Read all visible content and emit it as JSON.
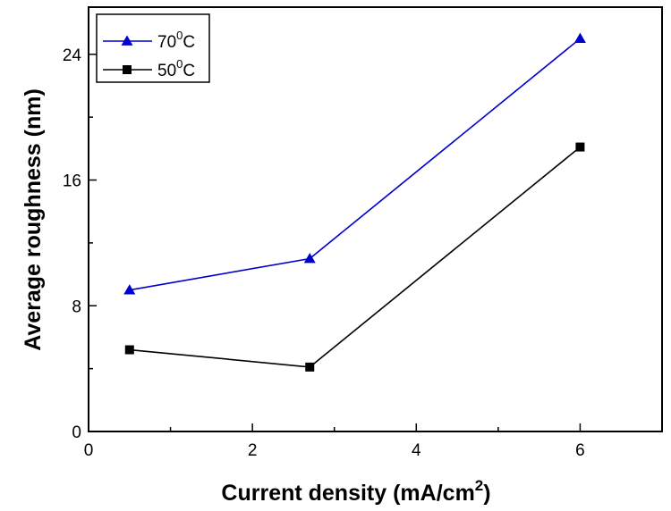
{
  "chart_data": {
    "type": "line",
    "title": "",
    "xlabel": "Current density (mA/cm",
    "xlabel_sup": "2",
    "xlabel_close": ")",
    "ylabel": "Average roughness (nm)",
    "xlim": [
      0,
      7
    ],
    "ylim": [
      0,
      27
    ],
    "xticks": [
      0,
      2,
      4,
      6
    ],
    "yticks": [
      0,
      8,
      16,
      24
    ],
    "grid": false,
    "legend_position": "top-left",
    "series": [
      {
        "name": "70",
        "name_sup": "0",
        "name_suffix": "C",
        "color": "#0000cc",
        "marker": "triangle",
        "x": [
          0.5,
          2.7,
          6.0
        ],
        "y": [
          9.0,
          11.0,
          25.0
        ]
      },
      {
        "name": "50",
        "name_sup": "0",
        "name_suffix": "C",
        "color": "#000000",
        "marker": "square",
        "x": [
          0.5,
          2.7,
          6.0
        ],
        "y": [
          5.2,
          4.1,
          18.1
        ]
      }
    ]
  }
}
